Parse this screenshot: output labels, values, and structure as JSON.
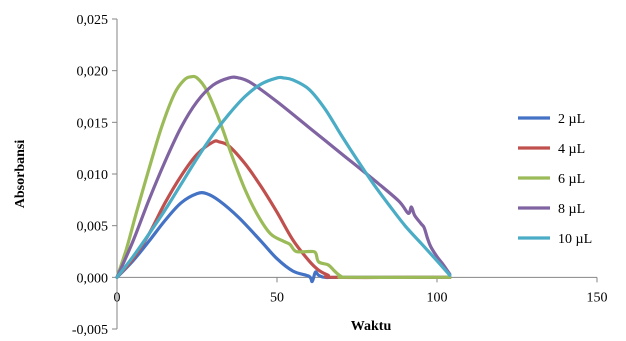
{
  "chart_data": {
    "type": "line",
    "xlabel": "Waktu",
    "ylabel": "Absorbansi",
    "xlim": [
      0,
      150
    ],
    "ylim": [
      -0.005,
      0.025
    ],
    "xticks": [
      "0",
      "50",
      "100",
      "150"
    ],
    "yticks": [
      "-0,005",
      "0,000",
      "0,005",
      "0,010",
      "0,015",
      "0,020",
      "0,025"
    ],
    "xtick_values": [
      0,
      50,
      100,
      150
    ],
    "ytick_values": [
      -0.005,
      0,
      0.005,
      0.01,
      0.015,
      0.02,
      0.025
    ],
    "grid": false,
    "legend_position": "right",
    "series": [
      {
        "name": "2 µL",
        "color": "#4472C4",
        "points": [
          [
            0,
            0
          ],
          [
            5,
            0.0016
          ],
          [
            10,
            0.0035
          ],
          [
            15,
            0.0055
          ],
          [
            20,
            0.0072
          ],
          [
            25,
            0.0081
          ],
          [
            28,
            0.0081
          ],
          [
            32,
            0.0074
          ],
          [
            38,
            0.0058
          ],
          [
            45,
            0.0035
          ],
          [
            50,
            0.0018
          ],
          [
            55,
            0.0006
          ],
          [
            60,
            0.0001
          ],
          [
            61,
            -0.0004
          ],
          [
            62,
            0.0005
          ],
          [
            63,
            0.0002
          ],
          [
            65,
            0.0
          ],
          [
            70,
            0.0
          ],
          [
            100,
            0.0
          ],
          [
            104,
            0.0
          ]
        ]
      },
      {
        "name": "4 µL",
        "color": "#C0504D",
        "points": [
          [
            0,
            0
          ],
          [
            5,
            0.0018
          ],
          [
            10,
            0.0042
          ],
          [
            15,
            0.0072
          ],
          [
            20,
            0.0098
          ],
          [
            25,
            0.0119
          ],
          [
            30,
            0.0131
          ],
          [
            32,
            0.0131
          ],
          [
            35,
            0.0127
          ],
          [
            40,
            0.011
          ],
          [
            45,
            0.0088
          ],
          [
            50,
            0.0063
          ],
          [
            55,
            0.0036
          ],
          [
            60,
            0.0016
          ],
          [
            63,
            0.0007
          ],
          [
            66,
            0.0002
          ],
          [
            68,
            0.0
          ],
          [
            100,
            0.0
          ],
          [
            104,
            0.0
          ]
        ]
      },
      {
        "name": "6 µL",
        "color": "#9BBB59",
        "points": [
          [
            0,
            0
          ],
          [
            3,
            0.0028
          ],
          [
            6,
            0.0062
          ],
          [
            10,
            0.0105
          ],
          [
            14,
            0.0146
          ],
          [
            18,
            0.0178
          ],
          [
            21,
            0.0191
          ],
          [
            23,
            0.0194
          ],
          [
            25,
            0.0193
          ],
          [
            28,
            0.0181
          ],
          [
            32,
            0.0152
          ],
          [
            36,
            0.0117
          ],
          [
            40,
            0.0085
          ],
          [
            44,
            0.006
          ],
          [
            48,
            0.0042
          ],
          [
            52,
            0.0035
          ],
          [
            54,
            0.0032
          ],
          [
            56,
            0.0025
          ],
          [
            60,
            0.0025
          ],
          [
            62,
            0.0024
          ],
          [
            63,
            0.0015
          ],
          [
            66,
            0.0012
          ],
          [
            68,
            0.0006
          ],
          [
            70,
            0.0001
          ],
          [
            72,
            0.0
          ],
          [
            100,
            0.0
          ],
          [
            104,
            0.0
          ]
        ]
      },
      {
        "name": "8 µL",
        "color": "#8064A2",
        "points": [
          [
            0,
            0
          ],
          [
            5,
            0.0035
          ],
          [
            10,
            0.0075
          ],
          [
            15,
            0.0112
          ],
          [
            20,
            0.0145
          ],
          [
            25,
            0.017
          ],
          [
            30,
            0.0186
          ],
          [
            35,
            0.0193
          ],
          [
            38,
            0.0193
          ],
          [
            42,
            0.0188
          ],
          [
            50,
            0.017
          ],
          [
            60,
            0.0145
          ],
          [
            70,
            0.012
          ],
          [
            80,
            0.0095
          ],
          [
            88,
            0.0074
          ],
          [
            91,
            0.0062
          ],
          [
            92,
            0.0068
          ],
          [
            93,
            0.006
          ],
          [
            95,
            0.0052
          ],
          [
            96,
            0.0048
          ],
          [
            97,
            0.0038
          ],
          [
            98,
            0.003
          ],
          [
            100,
            0.002
          ],
          [
            102,
            0.0012
          ],
          [
            104,
            0.0003
          ]
        ]
      },
      {
        "name": "10 µL",
        "color": "#4BACC6",
        "points": [
          [
            0,
            0
          ],
          [
            5,
            0.002
          ],
          [
            10,
            0.0042
          ],
          [
            15,
            0.0065
          ],
          [
            20,
            0.009
          ],
          [
            25,
            0.0115
          ],
          [
            30,
            0.0138
          ],
          [
            35,
            0.0158
          ],
          [
            40,
            0.0175
          ],
          [
            45,
            0.0187
          ],
          [
            50,
            0.0193
          ],
          [
            52,
            0.0193
          ],
          [
            55,
            0.0191
          ],
          [
            60,
            0.0182
          ],
          [
            65,
            0.0163
          ],
          [
            70,
            0.0138
          ],
          [
            75,
            0.0114
          ],
          [
            80,
            0.0091
          ],
          [
            85,
            0.007
          ],
          [
            90,
            0.005
          ],
          [
            95,
            0.0033
          ],
          [
            100,
            0.0016
          ],
          [
            104,
            0.0002
          ]
        ]
      }
    ]
  }
}
